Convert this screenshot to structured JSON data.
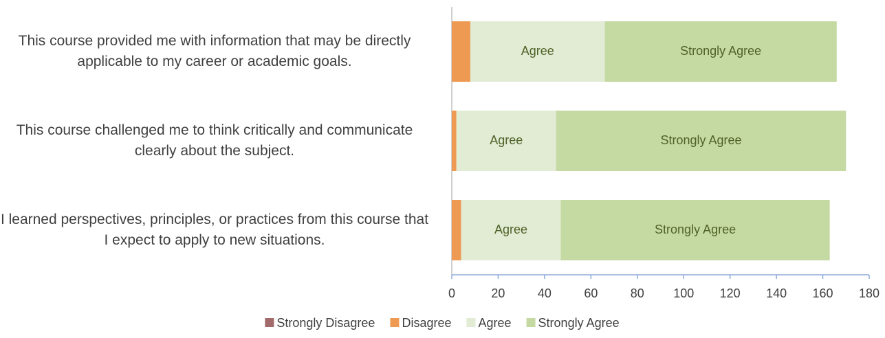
{
  "chart_data": {
    "type": "stacked_barh",
    "categories": [
      "This course provided me with information that may be directly applicable to my career or academic goals.",
      "This course challenged me to think critically and communicate clearly about the subject.",
      "I learned perspectives, principles, or practices from this course that I expect to apply to new situations."
    ],
    "series": [
      {
        "name": "Strongly Disagree",
        "color": "#a26a6a",
        "values": [
          0,
          0,
          0
        ],
        "show_labels": false
      },
      {
        "name": "Disagree",
        "color": "#ef9a52",
        "values": [
          8,
          2,
          4
        ],
        "show_labels": false
      },
      {
        "name": "Agree",
        "color": "#e2ebd3",
        "values": [
          58,
          43,
          43
        ],
        "show_labels": true
      },
      {
        "name": "Strongly Agree",
        "color": "#c5d9a2",
        "values": [
          100,
          125,
          116
        ],
        "show_labels": true
      }
    ],
    "xlim": [
      0,
      180
    ],
    "xticks": [
      0,
      20,
      40,
      60,
      80,
      100,
      120,
      140,
      160,
      180
    ],
    "legend": "bottom",
    "label_color": "#4f6228"
  }
}
